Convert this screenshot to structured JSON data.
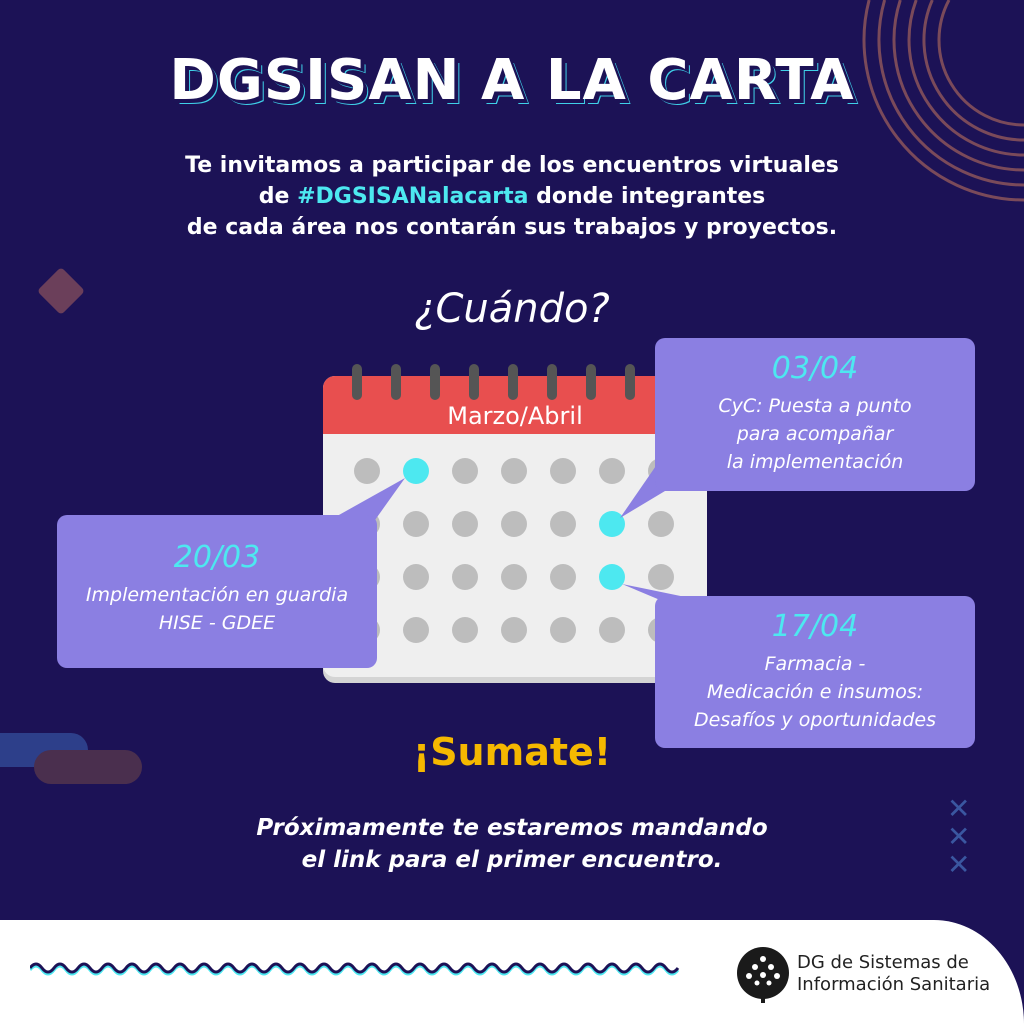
{
  "title": "DGSISAN A LA CARTA",
  "intro": {
    "line1": "Te invitamos a participar de los encuentros virtuales",
    "line2_pre": "de ",
    "hashtag": "#DGSISANalacarta",
    "line2_post": " donde integrantes",
    "line3": "de cada área nos contarán sus trabajos y proyectos."
  },
  "when": "¿Cuándo?",
  "calendar": {
    "header": "Marzo/Abril",
    "accent": "#4de8f0",
    "header_color": "#e84f4f"
  },
  "events": [
    {
      "date": "20/03",
      "lines": [
        "Implementación en guardia",
        "HISE - GDEE"
      ]
    },
    {
      "date": "03/04",
      "lines": [
        "CyC: Puesta a punto",
        "para acompañar",
        "la implementación"
      ]
    },
    {
      "date": "17/04",
      "lines": [
        "Farmacia -",
        "Medicación e insumos:",
        "Desafíos y oportunidades"
      ]
    }
  ],
  "cta": "¡Sumate!",
  "closing": {
    "line1": "Próximamente te estaremos mandando",
    "line2": "el link para el primer encuentro."
  },
  "org": {
    "line1": "DG de Sistemas de",
    "line2": "Información Sanitaria",
    "logo": "tree-logo-icon"
  }
}
